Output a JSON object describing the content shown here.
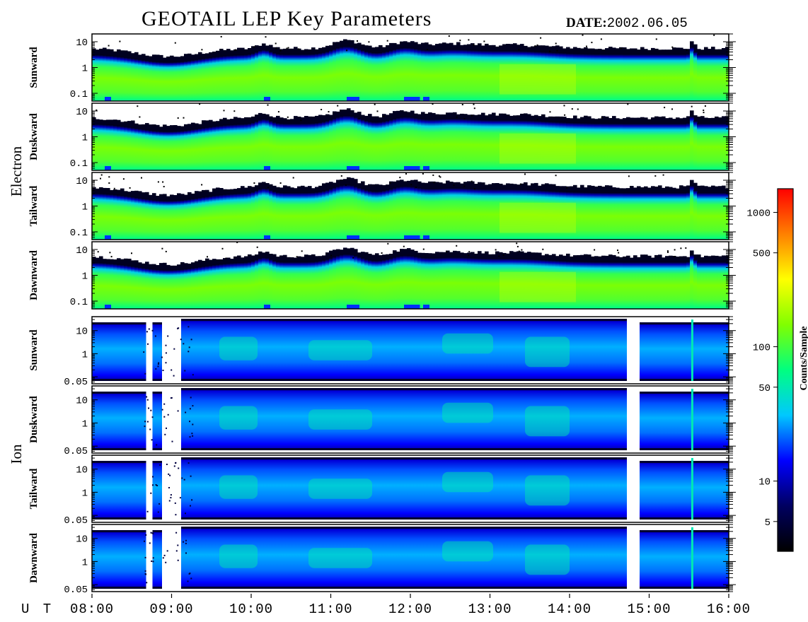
{
  "header": {
    "title": "GEOTAIL LEP Key Parameters",
    "date_label": "DATE:",
    "date_value": "2002.06.05"
  },
  "colors": {
    "background": "#ffffff",
    "frame": "#000000",
    "empty": "#ffffff"
  },
  "chart_data": {
    "type": "heatmap",
    "x_axis": {
      "label": "U T",
      "ticks": [
        "08:00",
        "09:00",
        "10:00",
        "11:00",
        "12:00",
        "13:00",
        "14:00",
        "15:00",
        "16:00"
      ],
      "range": [
        "08:00",
        "16:00"
      ]
    },
    "colorbar": {
      "label": "Counts/Sample",
      "scale": "log",
      "range": [
        3,
        1500
      ],
      "ticks": [
        5,
        10,
        50,
        100,
        500,
        1000
      ],
      "colormap": [
        "#000000",
        "#000060",
        "#0000ff",
        "#00c8ff",
        "#00ff80",
        "#80ff00",
        "#ffff00",
        "#ff8000",
        "#ff0000"
      ]
    },
    "groups": [
      {
        "name": "Electron",
        "panels": [
          {
            "name": "Sunward",
            "y_scale": "log",
            "y_range": [
              0.05,
              20
            ],
            "y_ticks": [
              "10",
              "1",
              "0.1"
            ]
          },
          {
            "name": "Duskward",
            "y_scale": "log",
            "y_range": [
              0.05,
              20
            ],
            "y_ticks": [
              "10",
              "1",
              "0.1"
            ]
          },
          {
            "name": "Tailward",
            "y_scale": "log",
            "y_range": [
              0.05,
              20
            ],
            "y_ticks": [
              "10",
              "1",
              "0.1"
            ]
          },
          {
            "name": "Dawnward",
            "y_scale": "log",
            "y_range": [
              0.05,
              20
            ],
            "y_ticks": [
              "10",
              "1",
              "0.1"
            ]
          }
        ]
      },
      {
        "name": "Ion",
        "panels": [
          {
            "name": "Sunward",
            "y_scale": "log",
            "y_range": [
              0.05,
              40
            ],
            "y_ticks": [
              "10",
              "1",
              "0.05"
            ]
          },
          {
            "name": "Duskward",
            "y_scale": "log",
            "y_range": [
              0.05,
              40
            ],
            "y_ticks": [
              "10",
              "1",
              "0.05"
            ]
          },
          {
            "name": "Tailward",
            "y_scale": "log",
            "y_range": [
              0.05,
              40
            ],
            "y_ticks": [
              "10",
              "1",
              "0.05"
            ]
          },
          {
            "name": "Dawnward",
            "y_scale": "log",
            "y_range": [
              0.05,
              40
            ],
            "y_ticks": [
              "10",
              "1",
              "0.05"
            ]
          }
        ]
      }
    ]
  }
}
